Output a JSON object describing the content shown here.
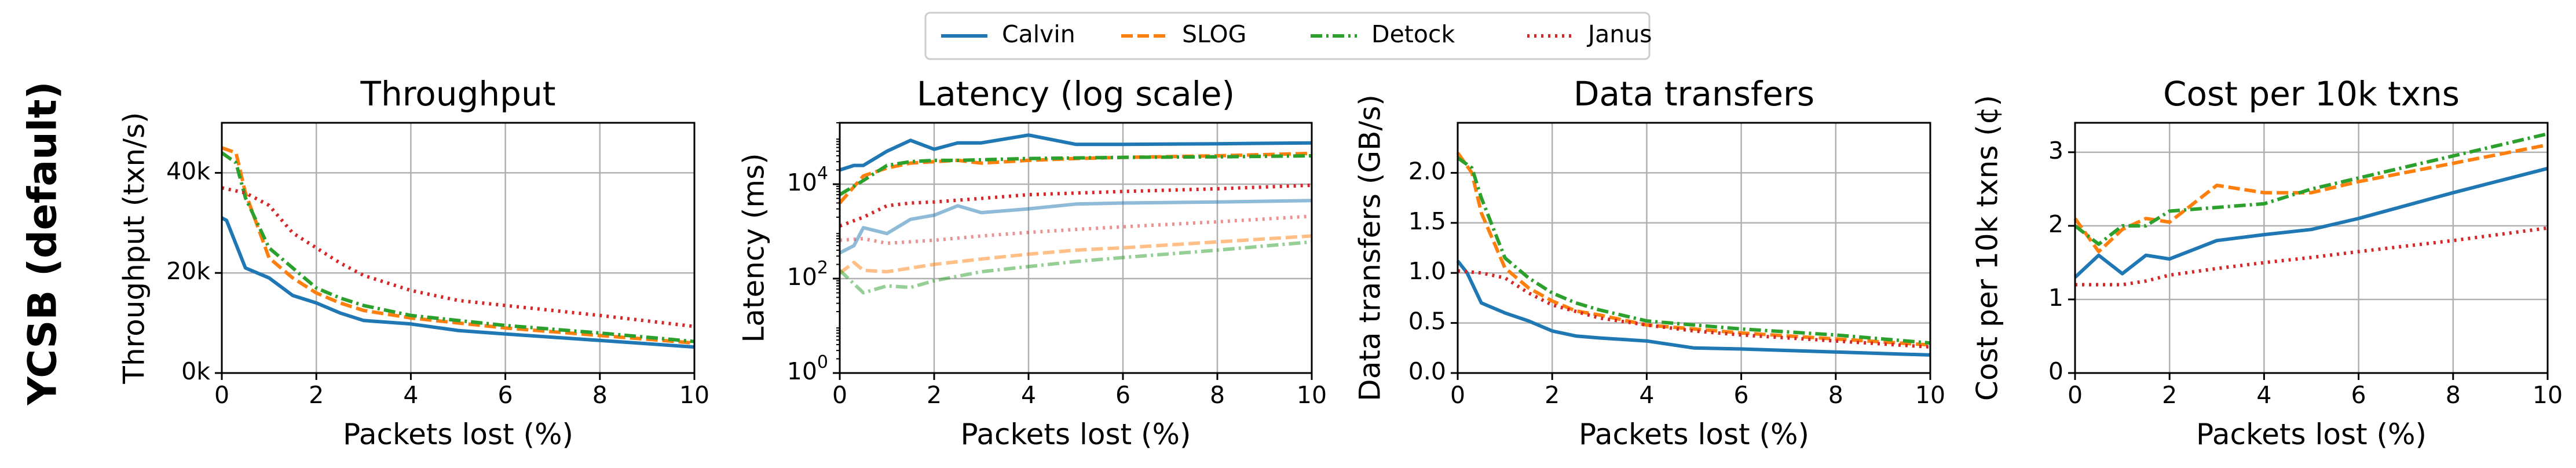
{
  "row_label": "YCSB (default)",
  "legend": [
    {
      "name": "Calvin",
      "color": "#1f77b4",
      "dash": "solid"
    },
    {
      "name": "SLOG",
      "color": "#ff7f0e",
      "dash": "dashed"
    },
    {
      "name": "Detock",
      "color": "#2ca02c",
      "dash": "dashdot"
    },
    {
      "name": "Janus",
      "color": "#d62728",
      "dash": "dotted"
    }
  ],
  "chart_data": [
    {
      "type": "line",
      "title": "Throughput",
      "xlabel": "Packets lost (%)",
      "ylabel": "Throughput (txn/s)",
      "xlim": [
        0,
        10
      ],
      "ylim": [
        0,
        50000
      ],
      "xticks": [
        0,
        2,
        4,
        6,
        8,
        10
      ],
      "yticks": [
        0,
        20000,
        40000
      ],
      "ytick_labels": [
        "0k",
        "20k",
        "40k"
      ],
      "grid": true,
      "series": [
        {
          "name": "Calvin",
          "x": [
            0,
            0.1,
            0.5,
            1,
            1.5,
            2,
            2.5,
            3,
            4,
            5,
            6,
            8,
            10
          ],
          "y": [
            31000,
            30500,
            21000,
            19000,
            15500,
            14000,
            12000,
            10500,
            9800,
            8500,
            7800,
            6500,
            5200
          ]
        },
        {
          "name": "SLOG",
          "x": [
            0,
            0.3,
            0.5,
            1,
            1.5,
            2,
            2.5,
            3,
            4,
            5,
            6,
            8,
            10
          ],
          "y": [
            45000,
            44000,
            36000,
            23000,
            19000,
            16000,
            14000,
            12500,
            11000,
            10000,
            9000,
            7500,
            6000
          ]
        },
        {
          "name": "Detock",
          "x": [
            0,
            0.3,
            0.5,
            1,
            1.5,
            2,
            2.5,
            3,
            4,
            5,
            6,
            8,
            10
          ],
          "y": [
            44000,
            42000,
            35000,
            25000,
            21000,
            17000,
            15000,
            13500,
            11500,
            10500,
            9500,
            8000,
            6300
          ]
        },
        {
          "name": "Janus",
          "x": [
            0,
            0.5,
            1,
            1.5,
            2,
            2.5,
            3,
            4,
            5,
            6,
            8,
            10
          ],
          "y": [
            37000,
            36000,
            33500,
            28000,
            25000,
            22000,
            19500,
            16500,
            14500,
            13500,
            11500,
            9300
          ]
        }
      ]
    },
    {
      "type": "line",
      "title": "Latency (log scale)",
      "xlabel": "Packets lost (%)",
      "ylabel": "Latency (ms)",
      "xlim": [
        0,
        10
      ],
      "ylim": [
        1,
        200000
      ],
      "yscale": "log",
      "xticks": [
        0,
        2,
        4,
        6,
        8,
        10
      ],
      "yticks": [
        1,
        100,
        10000
      ],
      "ytick_labels": [
        "10^0",
        "10^2",
        "10^4"
      ],
      "grid": true,
      "series": [
        {
          "name": "Calvin",
          "x": [
            0,
            0.3,
            0.5,
            1,
            1.5,
            2,
            2.5,
            3,
            4,
            5,
            6,
            8,
            10
          ],
          "y": [
            20000,
            25000,
            25000,
            50000,
            85000,
            55000,
            75000,
            75000,
            110000,
            70000,
            70000,
            72000,
            75000
          ]
        },
        {
          "name": "SLOG",
          "x": [
            0,
            0.5,
            1,
            1.5,
            2,
            2.5,
            3,
            4,
            5,
            6,
            8,
            10
          ],
          "y": [
            4000,
            15000,
            22000,
            28000,
            30000,
            32000,
            28000,
            32000,
            35000,
            37000,
            40000,
            45000
          ]
        },
        {
          "name": "Detock",
          "x": [
            0,
            0.5,
            1,
            1.5,
            2,
            2.5,
            3,
            4,
            5,
            6,
            8,
            10
          ],
          "y": [
            6000,
            12000,
            25000,
            30000,
            32000,
            32000,
            33000,
            35000,
            36000,
            37000,
            38000,
            40000
          ]
        },
        {
          "name": "Janus",
          "x": [
            0,
            0.5,
            1,
            1.5,
            2,
            3,
            4,
            5,
            6,
            8,
            10
          ],
          "y": [
            1300,
            2000,
            3500,
            4000,
            4200,
            5000,
            6000,
            6500,
            7000,
            8000,
            9500
          ]
        },
        {
          "name": "Calvin (faded)",
          "x": [
            0,
            0.3,
            0.5,
            1,
            1.5,
            2,
            2.5,
            3,
            4,
            5,
            6,
            8,
            10
          ],
          "y": [
            350,
            500,
            1200,
            900,
            1800,
            2200,
            3500,
            2500,
            3000,
            3800,
            4000,
            4200,
            4500
          ]
        },
        {
          "name": "SLOG (faded)",
          "x": [
            0,
            0.3,
            0.5,
            1,
            2,
            3,
            4,
            5,
            6,
            8,
            10
          ],
          "y": [
            130,
            220,
            150,
            140,
            200,
            260,
            330,
            400,
            450,
            600,
            800
          ]
        },
        {
          "name": "Detock (faded)",
          "x": [
            0,
            0.5,
            1,
            1.5,
            2,
            3,
            4,
            5,
            6,
            8,
            10
          ],
          "y": [
            150,
            50,
            70,
            65,
            90,
            140,
            180,
            230,
            280,
            400,
            600
          ]
        },
        {
          "name": "Janus (faded)",
          "x": [
            0,
            0.5,
            1,
            2,
            3,
            4,
            5,
            6,
            8,
            10
          ],
          "y": [
            650,
            700,
            560,
            650,
            800,
            950,
            1100,
            1250,
            1600,
            2100
          ]
        }
      ]
    },
    {
      "type": "line",
      "title": "Data transfers",
      "xlabel": "Packets lost (%)",
      "ylabel": "Data transfers (GB/s)",
      "xlim": [
        0,
        10
      ],
      "ylim": [
        0,
        2.5
      ],
      "xticks": [
        0,
        2,
        4,
        6,
        8,
        10
      ],
      "yticks": [
        0,
        0.5,
        1.0,
        1.5,
        2.0
      ],
      "ytick_labels": [
        "0.0",
        "0.5",
        "1.0",
        "1.5",
        "2.0"
      ],
      "grid": true,
      "series": [
        {
          "name": "Calvin",
          "x": [
            0,
            0.2,
            0.5,
            1,
            1.5,
            2,
            2.5,
            3,
            4,
            5,
            6,
            8,
            10
          ],
          "y": [
            1.12,
            1.0,
            0.7,
            0.6,
            0.52,
            0.42,
            0.37,
            0.35,
            0.32,
            0.25,
            0.24,
            0.21,
            0.18
          ]
        },
        {
          "name": "SLOG",
          "x": [
            0,
            0.3,
            0.5,
            1,
            1.5,
            2,
            2.5,
            3,
            4,
            5,
            6,
            8,
            10
          ],
          "y": [
            2.2,
            2.0,
            1.6,
            1.05,
            0.85,
            0.72,
            0.62,
            0.58,
            0.48,
            0.44,
            0.4,
            0.34,
            0.28
          ]
        },
        {
          "name": "Detock",
          "x": [
            0,
            0.3,
            0.5,
            1,
            1.5,
            2,
            2.5,
            3,
            4,
            5,
            6,
            8,
            10
          ],
          "y": [
            2.15,
            2.05,
            1.75,
            1.15,
            0.95,
            0.8,
            0.7,
            0.63,
            0.52,
            0.48,
            0.44,
            0.38,
            0.3
          ]
        },
        {
          "name": "Janus",
          "x": [
            0,
            0.5,
            1,
            1.5,
            2,
            3,
            4,
            5,
            6,
            8,
            10
          ],
          "y": [
            1.02,
            1.0,
            0.95,
            0.8,
            0.68,
            0.55,
            0.48,
            0.42,
            0.38,
            0.32,
            0.26
          ]
        }
      ]
    },
    {
      "type": "line",
      "title": "Cost per 10k txns",
      "xlabel": "Packets lost (%)",
      "ylabel": "Cost per 10k txns (¢)",
      "xlim": [
        0,
        10
      ],
      "ylim": [
        0,
        3.4
      ],
      "xticks": [
        0,
        2,
        4,
        6,
        8,
        10
      ],
      "yticks": [
        0,
        1,
        2,
        3
      ],
      "ytick_labels": [
        "0",
        "1",
        "2",
        "3"
      ],
      "grid": true,
      "series": [
        {
          "name": "Calvin",
          "x": [
            0,
            0.5,
            1,
            1.5,
            2,
            3,
            4,
            5,
            6,
            8,
            10
          ],
          "y": [
            1.3,
            1.6,
            1.35,
            1.6,
            1.55,
            1.8,
            1.88,
            1.95,
            2.1,
            2.45,
            2.78
          ]
        },
        {
          "name": "SLOG",
          "x": [
            0,
            0.5,
            1,
            1.5,
            2,
            3,
            4,
            5,
            6,
            8,
            10
          ],
          "y": [
            2.1,
            1.65,
            1.95,
            2.1,
            2.05,
            2.55,
            2.45,
            2.45,
            2.6,
            2.85,
            3.1
          ]
        },
        {
          "name": "Detock",
          "x": [
            0,
            0.5,
            1,
            1.5,
            2,
            3,
            4,
            5,
            6,
            8,
            10
          ],
          "y": [
            2.0,
            1.75,
            2.0,
            2.0,
            2.2,
            2.25,
            2.3,
            2.5,
            2.65,
            2.95,
            3.25
          ]
        },
        {
          "name": "Janus",
          "x": [
            0,
            0.5,
            1,
            1.5,
            2,
            3,
            4,
            5,
            6,
            8,
            10
          ],
          "y": [
            1.2,
            1.2,
            1.2,
            1.25,
            1.33,
            1.42,
            1.5,
            1.57,
            1.65,
            1.8,
            1.97
          ]
        }
      ]
    }
  ]
}
